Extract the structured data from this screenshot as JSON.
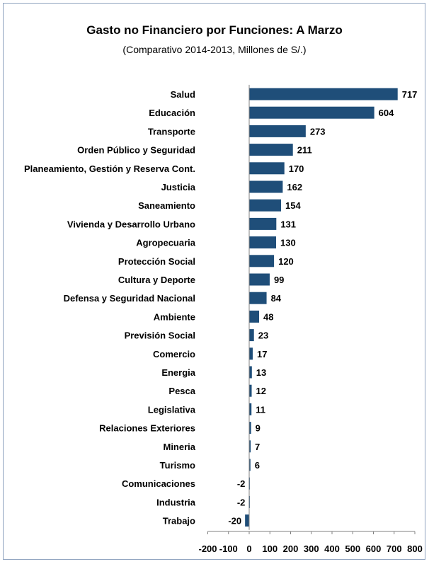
{
  "chart_data": {
    "type": "bar",
    "orientation": "horizontal",
    "title": "Gasto no Financiero por Funciones: A Marzo",
    "subtitle": "(Comparativo 2014-2013, Millones de S/.)",
    "categories": [
      "Salud",
      "Educación",
      "Transporte",
      "Orden Público y Seguridad",
      "Planeamiento, Gestión y Reserva Cont.",
      "Justicia",
      "Saneamiento",
      "Vivienda y Desarrollo Urbano",
      "Agropecuaria",
      "Protección Social",
      "Cultura y Deporte",
      "Defensa y Seguridad Nacional",
      "Ambiente",
      "Previsión Social",
      "Comercio",
      "Energia",
      "Pesca",
      "Legislativa",
      "Relaciones Exteriores",
      "Mineria",
      "Turismo",
      "Comunicaciones",
      "Industria",
      "Trabajo"
    ],
    "values": [
      717,
      604,
      273,
      211,
      170,
      162,
      154,
      131,
      130,
      120,
      99,
      84,
      48,
      23,
      17,
      13,
      12,
      11,
      9,
      7,
      6,
      -2,
      -2,
      -20
    ],
    "xlim": [
      -200,
      800
    ],
    "xticks": [
      "-200",
      "-100",
      "0",
      "100",
      "200",
      "300",
      "400",
      "500",
      "600",
      "700",
      "800"
    ],
    "xlabel": "",
    "ylabel": "",
    "grid": false,
    "bar_color": "#1f4e79",
    "data_labels": true
  }
}
